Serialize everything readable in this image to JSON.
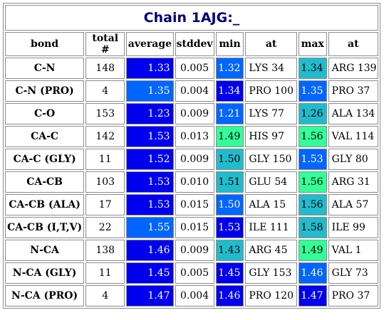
{
  "title": "Chain 1AJG:_",
  "headers": [
    "bond",
    "total #",
    "average",
    "stddev",
    "min",
    "at",
    "max",
    "at"
  ],
  "colors": {
    "very_low": "#0000ee",
    "low": "#0066ff",
    "mid_low": "#0a8cf0",
    "mid": "#22bbcc",
    "high": "#33ff99"
  },
  "rows": [
    {
      "bond": "C-N",
      "total": "148",
      "average": "1.33",
      "avg_color": "#0000ee",
      "stddev": "0.005",
      "min": "1.32",
      "min_color": "#0066ff",
      "min_at": "LYS 34",
      "max": "1.34",
      "max_color": "#22bbcc",
      "max_at": "ARG 139"
    },
    {
      "bond": "C-N (PRO)",
      "total": "4",
      "average": "1.35",
      "avg_color": "#0066ff",
      "stddev": "0.004",
      "min": "1.34",
      "min_color": "#0000ee",
      "min_at": "PRO 100",
      "max": "1.35",
      "max_color": "#0066ff",
      "max_at": "PRO 37"
    },
    {
      "bond": "C-O",
      "total": "153",
      "average": "1.23",
      "avg_color": "#0000ee",
      "stddev": "0.009",
      "min": "1.21",
      "min_color": "#0066ff",
      "min_at": "LYS 77",
      "max": "1.26",
      "max_color": "#22bbcc",
      "max_at": "ALA 134"
    },
    {
      "bond": "CA-C",
      "total": "142",
      "average": "1.53",
      "avg_color": "#0000ee",
      "stddev": "0.013",
      "min": "1.49",
      "min_color": "#33ff99",
      "min_at": "HIS 97",
      "max": "1.56",
      "max_color": "#33ff99",
      "max_at": "VAL 114"
    },
    {
      "bond": "CA-C (GLY)",
      "total": "11",
      "average": "1.52",
      "avg_color": "#0000ee",
      "stddev": "0.009",
      "min": "1.50",
      "min_color": "#22bbcc",
      "min_at": "GLY 150",
      "max": "1.53",
      "max_color": "#0066ff",
      "max_at": "GLY 80"
    },
    {
      "bond": "CA-CB",
      "total": "103",
      "average": "1.53",
      "avg_color": "#0000ee",
      "stddev": "0.010",
      "min": "1.51",
      "min_color": "#22bbcc",
      "min_at": "GLU 54",
      "max": "1.56",
      "max_color": "#33ff99",
      "max_at": "ARG 31"
    },
    {
      "bond": "CA-CB (ALA)",
      "total": "17",
      "average": "1.53",
      "avg_color": "#0000ee",
      "stddev": "0.015",
      "min": "1.50",
      "min_color": "#0066ff",
      "min_at": "ALA 15",
      "max": "1.56",
      "max_color": "#22bbcc",
      "max_at": "ALA 57"
    },
    {
      "bond": "CA-CB (I,T,V)",
      "total": "22",
      "average": "1.55",
      "avg_color": "#0066ff",
      "stddev": "0.015",
      "min": "1.53",
      "min_color": "#0000ee",
      "min_at": "ILE 111",
      "max": "1.58",
      "max_color": "#22bbcc",
      "max_at": "ILE 99"
    },
    {
      "bond": "N-CA",
      "total": "138",
      "average": "1.46",
      "avg_color": "#0000ee",
      "stddev": "0.009",
      "min": "1.43",
      "min_color": "#22bbcc",
      "min_at": "ARG 45",
      "max": "1.49",
      "max_color": "#33ff99",
      "max_at": "VAL 1"
    },
    {
      "bond": "N-CA (GLY)",
      "total": "11",
      "average": "1.45",
      "avg_color": "#0000ee",
      "stddev": "0.005",
      "min": "1.45",
      "min_color": "#0000ee",
      "min_at": "GLY 153",
      "max": "1.46",
      "max_color": "#0066ff",
      "max_at": "GLY 73"
    },
    {
      "bond": "N-CA (PRO)",
      "total": "4",
      "average": "1.47",
      "avg_color": "#0000ee",
      "stddev": "0.004",
      "min": "1.46",
      "min_color": "#0000ee",
      "min_at": "PRO 120",
      "max": "1.47",
      "max_color": "#0000ee",
      "max_at": "PRO 37"
    }
  ]
}
